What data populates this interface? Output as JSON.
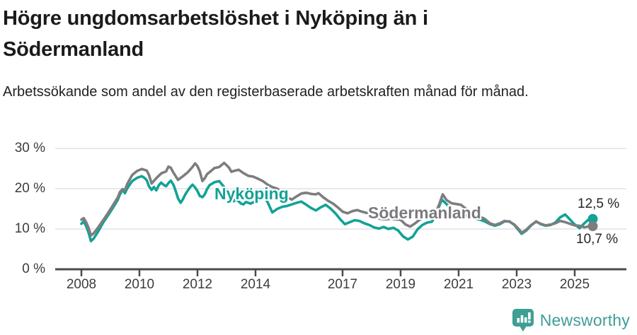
{
  "header": {
    "title": "Högre ungdomsarbetslöshet i Nyköping än i Södermanland",
    "subtitle": "Arbetssökande som andel av den registerbaserade arbetskraften månad för månad."
  },
  "footer": {
    "brand": "Newsworthy"
  },
  "colors": {
    "accent_teal": "#12A296",
    "line_gray": "#7D7D80",
    "grid": "#E2E2E2",
    "axis": "#4B4B4B",
    "text_dark": "#1B1B19",
    "tick_text": "#3C3C3C",
    "logo_teal": "#3E9F95"
  },
  "chart_data": {
    "type": "line",
    "title": "Högre ungdomsarbetslöshet i Nyköping än i Södermanland",
    "subtitle": "Arbetssökande som andel av den registerbaserade arbetskraften månad för månad.",
    "xlabel": "",
    "ylabel": "",
    "grid": true,
    "legend_position": "inline-labels",
    "xlim": [
      2007.1,
      2026.8
    ],
    "ylim": [
      0,
      30
    ],
    "x_ticks": [
      2008,
      2010,
      2012,
      2014,
      2017,
      2019,
      2021,
      2023,
      2025
    ],
    "y_ticks": [
      {
        "value": 0,
        "label": "0 %"
      },
      {
        "value": 10,
        "label": "10 %"
      },
      {
        "value": 20,
        "label": "20 %"
      },
      {
        "value": 30,
        "label": "30 %"
      }
    ],
    "series": [
      {
        "name": "Nyköping",
        "color": "#12A296",
        "end_label": "12,5 %",
        "end_value": 12.5,
        "points": [
          [
            2008.0,
            11.3
          ],
          [
            2008.08,
            11.9
          ],
          [
            2008.17,
            10.6
          ],
          [
            2008.25,
            9.0
          ],
          [
            2008.33,
            7.0
          ],
          [
            2008.42,
            7.6
          ],
          [
            2008.58,
            9.4
          ],
          [
            2008.75,
            11.6
          ],
          [
            2008.92,
            13.4
          ],
          [
            2009.08,
            15.2
          ],
          [
            2009.25,
            17.2
          ],
          [
            2009.33,
            18.6
          ],
          [
            2009.42,
            19.7
          ],
          [
            2009.5,
            18.9
          ],
          [
            2009.58,
            20.1
          ],
          [
            2009.75,
            21.9
          ],
          [
            2009.92,
            22.7
          ],
          [
            2010.08,
            23.1
          ],
          [
            2010.17,
            22.7
          ],
          [
            2010.25,
            22.1
          ],
          [
            2010.33,
            20.6
          ],
          [
            2010.42,
            19.7
          ],
          [
            2010.5,
            20.4
          ],
          [
            2010.58,
            19.6
          ],
          [
            2010.67,
            20.9
          ],
          [
            2010.75,
            21.5
          ],
          [
            2010.83,
            21.0
          ],
          [
            2010.92,
            20.6
          ],
          [
            2011.0,
            21.4
          ],
          [
            2011.08,
            22.0
          ],
          [
            2011.17,
            21.0
          ],
          [
            2011.25,
            19.4
          ],
          [
            2011.33,
            17.6
          ],
          [
            2011.42,
            16.5
          ],
          [
            2011.5,
            17.4
          ],
          [
            2011.58,
            18.6
          ],
          [
            2011.67,
            19.6
          ],
          [
            2011.75,
            20.4
          ],
          [
            2011.83,
            21.0
          ],
          [
            2011.92,
            20.3
          ],
          [
            2012.0,
            19.4
          ],
          [
            2012.08,
            18.2
          ],
          [
            2012.17,
            17.9
          ],
          [
            2012.25,
            18.6
          ],
          [
            2012.33,
            19.9
          ],
          [
            2012.42,
            20.9
          ],
          [
            2012.58,
            21.6
          ],
          [
            2012.75,
            21.9
          ],
          [
            2012.83,
            21.2
          ],
          [
            2012.92,
            20.4
          ],
          [
            2013.0,
            19.7
          ],
          [
            2013.08,
            18.9
          ],
          [
            2013.17,
            17.6
          ],
          [
            2013.25,
            16.9
          ],
          [
            2013.33,
            17.4
          ],
          [
            2013.42,
            16.9
          ],
          [
            2013.5,
            16.3
          ],
          [
            2013.58,
            16.1
          ],
          [
            2013.67,
            16.7
          ],
          [
            2013.83,
            16.3
          ],
          [
            2014.0,
            16.9
          ],
          [
            2014.17,
            17.4
          ],
          [
            2014.33,
            17.7
          ],
          [
            2014.42,
            16.6
          ],
          [
            2014.58,
            14.1
          ],
          [
            2014.75,
            15.0
          ],
          [
            2014.92,
            15.5
          ],
          [
            2015.08,
            15.7
          ],
          [
            2015.25,
            16.1
          ],
          [
            2015.42,
            16.5
          ],
          [
            2015.58,
            16.8
          ],
          [
            2015.75,
            16.0
          ],
          [
            2015.92,
            15.2
          ],
          [
            2016.08,
            14.6
          ],
          [
            2016.25,
            15.4
          ],
          [
            2016.42,
            16.0
          ],
          [
            2016.58,
            15.1
          ],
          [
            2016.75,
            13.9
          ],
          [
            2016.92,
            12.4
          ],
          [
            2017.08,
            11.2
          ],
          [
            2017.25,
            11.7
          ],
          [
            2017.42,
            12.2
          ],
          [
            2017.58,
            12.0
          ],
          [
            2017.75,
            11.4
          ],
          [
            2017.92,
            11.0
          ],
          [
            2018.08,
            10.4
          ],
          [
            2018.25,
            10.1
          ],
          [
            2018.42,
            10.5
          ],
          [
            2018.58,
            10.0
          ],
          [
            2018.75,
            10.3
          ],
          [
            2018.92,
            9.6
          ],
          [
            2019.08,
            8.2
          ],
          [
            2019.25,
            7.4
          ],
          [
            2019.42,
            8.1
          ],
          [
            2019.58,
            9.9
          ],
          [
            2019.75,
            11.0
          ],
          [
            2019.92,
            11.6
          ],
          [
            2020.08,
            11.8
          ],
          [
            2020.25,
            14.2
          ],
          [
            2020.42,
            17.3
          ],
          [
            2020.58,
            16.2
          ],
          [
            2020.75,
            14.8
          ],
          [
            2020.92,
            14.4
          ],
          [
            2021.08,
            14.2
          ],
          [
            2021.25,
            13.4
          ],
          [
            2021.42,
            12.9
          ],
          [
            2021.58,
            12.6
          ],
          [
            2021.75,
            12.3
          ],
          [
            2021.92,
            11.8
          ],
          [
            2022.08,
            11.2
          ],
          [
            2022.25,
            10.8
          ],
          [
            2022.42,
            11.2
          ],
          [
            2022.58,
            11.9
          ],
          [
            2022.75,
            11.9
          ],
          [
            2022.92,
            11.0
          ],
          [
            2023.08,
            9.6
          ],
          [
            2023.17,
            8.8
          ],
          [
            2023.33,
            9.6
          ],
          [
            2023.5,
            10.9
          ],
          [
            2023.67,
            11.9
          ],
          [
            2023.83,
            11.2
          ],
          [
            2024.0,
            10.8
          ],
          [
            2024.17,
            11.0
          ],
          [
            2024.33,
            11.6
          ],
          [
            2024.5,
            12.9
          ],
          [
            2024.67,
            13.6
          ],
          [
            2024.83,
            12.4
          ],
          [
            2025.0,
            11.1
          ],
          [
            2025.17,
            10.2
          ],
          [
            2025.33,
            11.4
          ],
          [
            2025.5,
            12.5
          ]
        ]
      },
      {
        "name": "Södermanland",
        "color": "#7D7D80",
        "end_label": "10,7 %",
        "end_value": 10.7,
        "points": [
          [
            2008.0,
            12.3
          ],
          [
            2008.08,
            12.7
          ],
          [
            2008.17,
            11.6
          ],
          [
            2008.25,
            10.2
          ],
          [
            2008.33,
            8.4
          ],
          [
            2008.42,
            8.9
          ],
          [
            2008.58,
            10.4
          ],
          [
            2008.75,
            12.2
          ],
          [
            2008.92,
            14.0
          ],
          [
            2009.08,
            15.8
          ],
          [
            2009.25,
            17.8
          ],
          [
            2009.33,
            19.2
          ],
          [
            2009.42,
            19.9
          ],
          [
            2009.5,
            19.6
          ],
          [
            2009.58,
            21.2
          ],
          [
            2009.75,
            23.4
          ],
          [
            2009.92,
            24.4
          ],
          [
            2010.08,
            24.9
          ],
          [
            2010.25,
            24.5
          ],
          [
            2010.33,
            23.4
          ],
          [
            2010.42,
            21.3
          ],
          [
            2010.58,
            22.6
          ],
          [
            2010.75,
            23.8
          ],
          [
            2010.92,
            24.3
          ],
          [
            2011.0,
            25.5
          ],
          [
            2011.08,
            25.2
          ],
          [
            2011.17,
            24.0
          ],
          [
            2011.33,
            22.2
          ],
          [
            2011.5,
            23.1
          ],
          [
            2011.67,
            24.1
          ],
          [
            2011.83,
            25.4
          ],
          [
            2011.92,
            26.3
          ],
          [
            2012.0,
            25.6
          ],
          [
            2012.08,
            24.3
          ],
          [
            2012.17,
            21.9
          ],
          [
            2012.25,
            22.6
          ],
          [
            2012.33,
            23.6
          ],
          [
            2012.5,
            24.6
          ],
          [
            2012.58,
            25.1
          ],
          [
            2012.75,
            25.4
          ],
          [
            2012.92,
            26.4
          ],
          [
            2013.08,
            25.3
          ],
          [
            2013.17,
            24.2
          ],
          [
            2013.25,
            24.4
          ],
          [
            2013.42,
            24.7
          ],
          [
            2013.58,
            23.9
          ],
          [
            2013.75,
            23.2
          ],
          [
            2013.92,
            23.0
          ],
          [
            2014.08,
            22.5
          ],
          [
            2014.25,
            21.9
          ],
          [
            2014.42,
            21.0
          ],
          [
            2014.58,
            20.4
          ],
          [
            2014.75,
            20.0
          ],
          [
            2014.92,
            19.0
          ],
          [
            2015.08,
            17.9
          ],
          [
            2015.25,
            17.3
          ],
          [
            2015.42,
            18.1
          ],
          [
            2015.58,
            18.8
          ],
          [
            2015.75,
            19.0
          ],
          [
            2015.92,
            18.7
          ],
          [
            2016.08,
            18.6
          ],
          [
            2016.17,
            18.9
          ],
          [
            2016.33,
            17.9
          ],
          [
            2016.5,
            17.0
          ],
          [
            2016.67,
            16.3
          ],
          [
            2016.83,
            15.4
          ],
          [
            2017.0,
            14.3
          ],
          [
            2017.17,
            13.9
          ],
          [
            2017.33,
            14.4
          ],
          [
            2017.5,
            14.7
          ],
          [
            2017.67,
            14.3
          ],
          [
            2017.83,
            14.0
          ],
          [
            2018.0,
            13.7
          ],
          [
            2018.17,
            12.8
          ],
          [
            2018.33,
            12.5
          ],
          [
            2018.5,
            12.4
          ],
          [
            2018.67,
            12.6
          ],
          [
            2018.83,
            12.4
          ],
          [
            2019.0,
            12.3
          ],
          [
            2019.17,
            11.1
          ],
          [
            2019.33,
            10.6
          ],
          [
            2019.5,
            11.4
          ],
          [
            2019.67,
            12.4
          ],
          [
            2019.83,
            12.9
          ],
          [
            2020.0,
            12.9
          ],
          [
            2020.17,
            13.3
          ],
          [
            2020.33,
            16.1
          ],
          [
            2020.45,
            18.6
          ],
          [
            2020.58,
            17.2
          ],
          [
            2020.75,
            16.4
          ],
          [
            2020.92,
            16.2
          ],
          [
            2021.08,
            16.0
          ],
          [
            2021.25,
            15.0
          ],
          [
            2021.42,
            13.9
          ],
          [
            2021.58,
            13.3
          ],
          [
            2021.75,
            13.0
          ],
          [
            2021.92,
            12.4
          ],
          [
            2022.08,
            11.4
          ],
          [
            2022.25,
            11.0
          ],
          [
            2022.42,
            11.4
          ],
          [
            2022.58,
            12.0
          ],
          [
            2022.75,
            11.8
          ],
          [
            2022.92,
            11.1
          ],
          [
            2023.08,
            9.9
          ],
          [
            2023.17,
            9.1
          ],
          [
            2023.33,
            9.8
          ],
          [
            2023.5,
            11.0
          ],
          [
            2023.67,
            11.8
          ],
          [
            2023.83,
            11.3
          ],
          [
            2024.0,
            10.9
          ],
          [
            2024.17,
            11.1
          ],
          [
            2024.33,
            11.4
          ],
          [
            2024.5,
            12.0
          ],
          [
            2024.67,
            11.7
          ],
          [
            2024.83,
            11.3
          ],
          [
            2025.0,
            10.9
          ],
          [
            2025.17,
            10.8
          ],
          [
            2025.33,
            10.4
          ],
          [
            2025.5,
            10.7
          ]
        ]
      }
    ]
  }
}
